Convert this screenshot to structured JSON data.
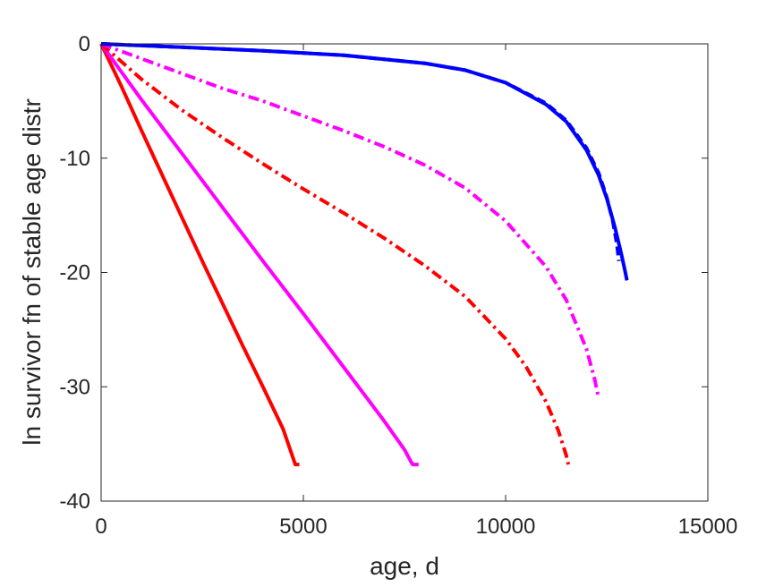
{
  "chart_data": {
    "type": "line",
    "title": "",
    "xlabel": "age, d",
    "ylabel": "ln survivor fn of stable age distr",
    "xlim": [
      0,
      15000
    ],
    "ylim": [
      -40,
      0
    ],
    "xticks": [
      0,
      5000,
      10000,
      15000
    ],
    "yticks": [
      0,
      -10,
      -20,
      -30,
      -40
    ],
    "xtick_labels": [
      "0",
      "5000",
      "10000",
      "15000"
    ],
    "ytick_labels": [
      "0",
      "-10",
      "-20",
      "-30",
      "-40"
    ],
    "grid": false,
    "legend": "none",
    "series": [
      {
        "color": "#ff0000",
        "style": "solid",
        "x": [
          0,
          500,
          1000,
          1500,
          2000,
          2500,
          3000,
          3500,
          4000,
          4500,
          4800,
          4900
        ],
        "y": [
          0,
          -3.7,
          -7.6,
          -11.4,
          -15.2,
          -19.0,
          -22.7,
          -26.4,
          -30.0,
          -33.7,
          -36.8,
          -36.8
        ]
      },
      {
        "color": "#ff00ff",
        "style": "solid",
        "x": [
          0,
          1000,
          2000,
          3000,
          4000,
          5000,
          6000,
          7000,
          7500,
          7700,
          7850
        ],
        "y": [
          0,
          -4.9,
          -9.6,
          -14.3,
          -19.0,
          -23.6,
          -28.3,
          -33.0,
          -35.5,
          -36.8,
          -36.8
        ]
      },
      {
        "color": "#ff0000",
        "style": "dashdot",
        "x": [
          0,
          1000,
          2000,
          3000,
          4000,
          5000,
          6000,
          7000,
          8000,
          9000,
          10000,
          10500,
          11000,
          11300,
          11500,
          11550
        ],
        "y": [
          0,
          -3.1,
          -5.8,
          -8.2,
          -10.5,
          -12.7,
          -14.8,
          -17.0,
          -19.4,
          -22.1,
          -25.8,
          -28.2,
          -31.3,
          -33.8,
          -36.0,
          -36.8
        ]
      },
      {
        "color": "#ff00ff",
        "style": "dashdot",
        "x": [
          0,
          1000,
          2000,
          3000,
          4000,
          5000,
          6000,
          7000,
          8000,
          9000,
          10000,
          11000,
          11500,
          12000,
          12200,
          12300
        ],
        "y": [
          0,
          -1.3,
          -2.6,
          -3.9,
          -5.0,
          -6.3,
          -7.6,
          -9.0,
          -10.6,
          -12.6,
          -15.5,
          -19.5,
          -22.4,
          -26.7,
          -29.3,
          -31.0
        ]
      },
      {
        "color": "#0000ff",
        "style": "dashed",
        "x": [
          0,
          2000,
          4000,
          6000,
          8000,
          9000,
          10000,
          11000,
          11500,
          12000,
          12300,
          12500,
          12650,
          12750,
          12800
        ],
        "y": [
          0,
          -0.3,
          -0.6,
          -1.0,
          -1.7,
          -2.3,
          -3.4,
          -5.2,
          -6.7,
          -9.1,
          -11.3,
          -13.4,
          -15.5,
          -17.5,
          -19.0
        ]
      },
      {
        "color": "#0000ff",
        "style": "solid",
        "x": [
          0,
          2000,
          4000,
          6000,
          8000,
          9000,
          10000,
          11000,
          11500,
          12000,
          12300,
          12500,
          12700,
          12850,
          12950,
          13000
        ],
        "y": [
          0,
          -0.3,
          -0.6,
          -1.0,
          -1.7,
          -2.3,
          -3.4,
          -5.3,
          -6.8,
          -9.3,
          -11.5,
          -13.5,
          -16.0,
          -18.2,
          -19.8,
          -20.7
        ]
      }
    ]
  }
}
